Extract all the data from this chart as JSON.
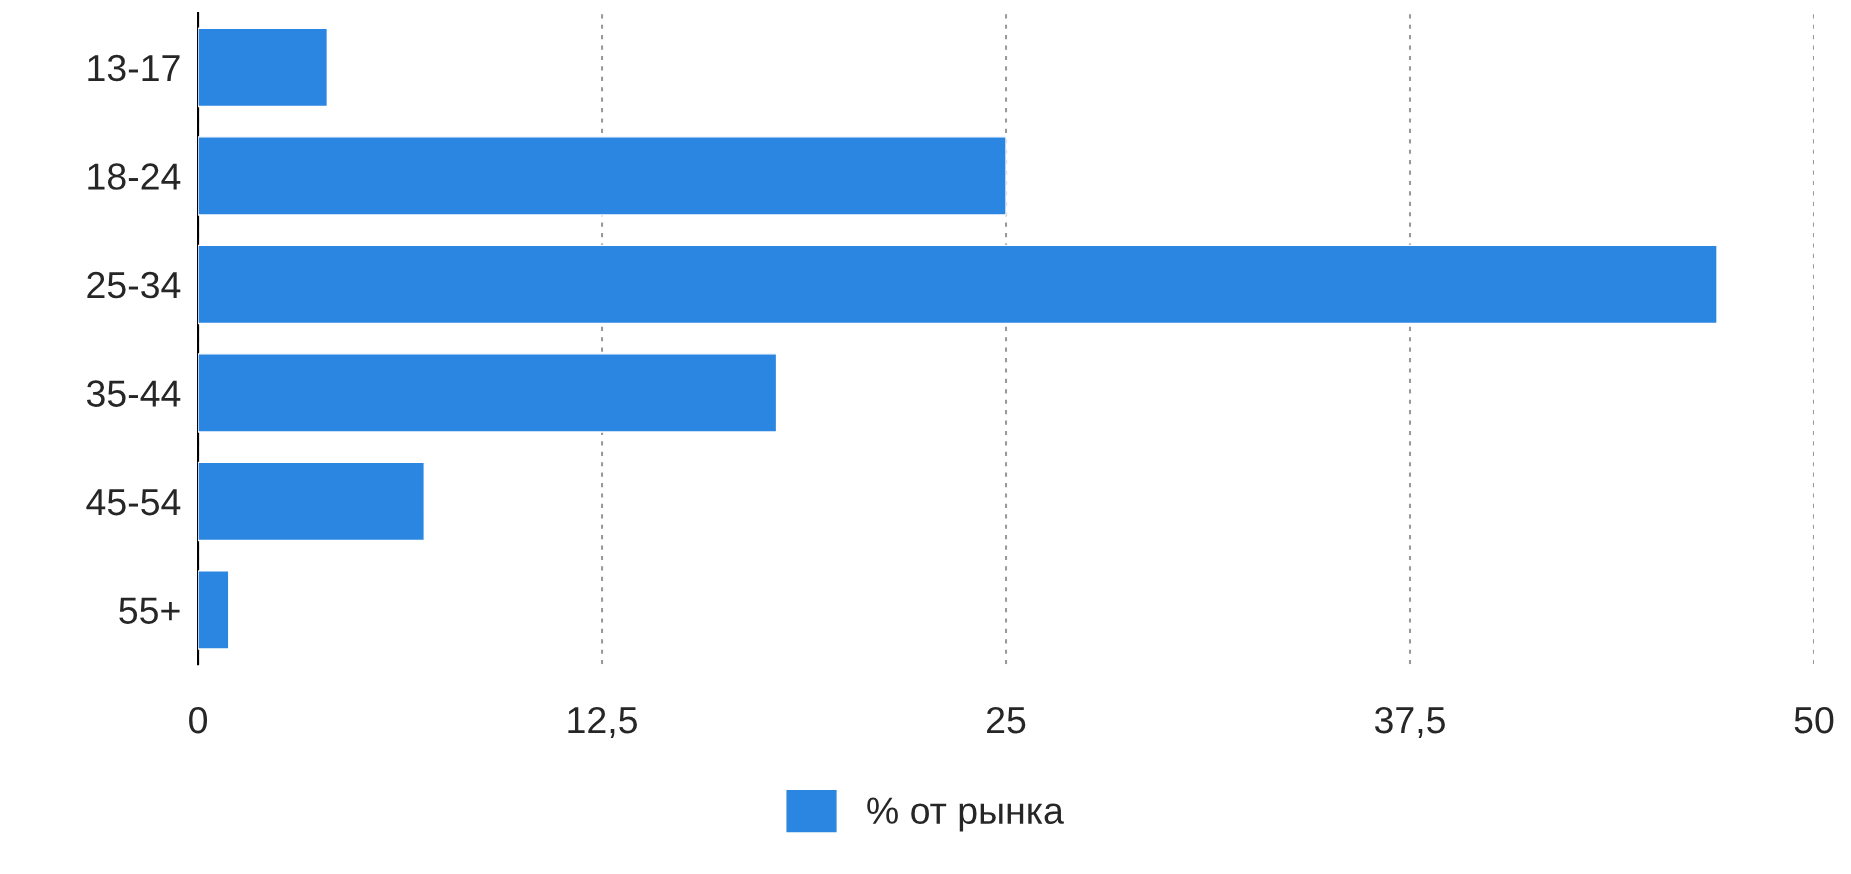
{
  "chart_data": {
    "type": "bar",
    "orientation": "horizontal",
    "categories": [
      "13-17",
      "18-24",
      "25-34",
      "35-44",
      "45-54",
      "55+"
    ],
    "series": [
      {
        "name": "% от рынка",
        "color": "#2a86e0",
        "values": [
          4,
          25,
          47,
          17.9,
          7,
          0.95
        ]
      }
    ],
    "xlim": [
      0,
      50
    ],
    "xticks": [
      0,
      {
        "value": 12.5,
        "label": "12,5"
      },
      25,
      {
        "value": 37.5,
        "label": "37,5"
      },
      50
    ],
    "grid": "x",
    "legend": "bottom"
  }
}
